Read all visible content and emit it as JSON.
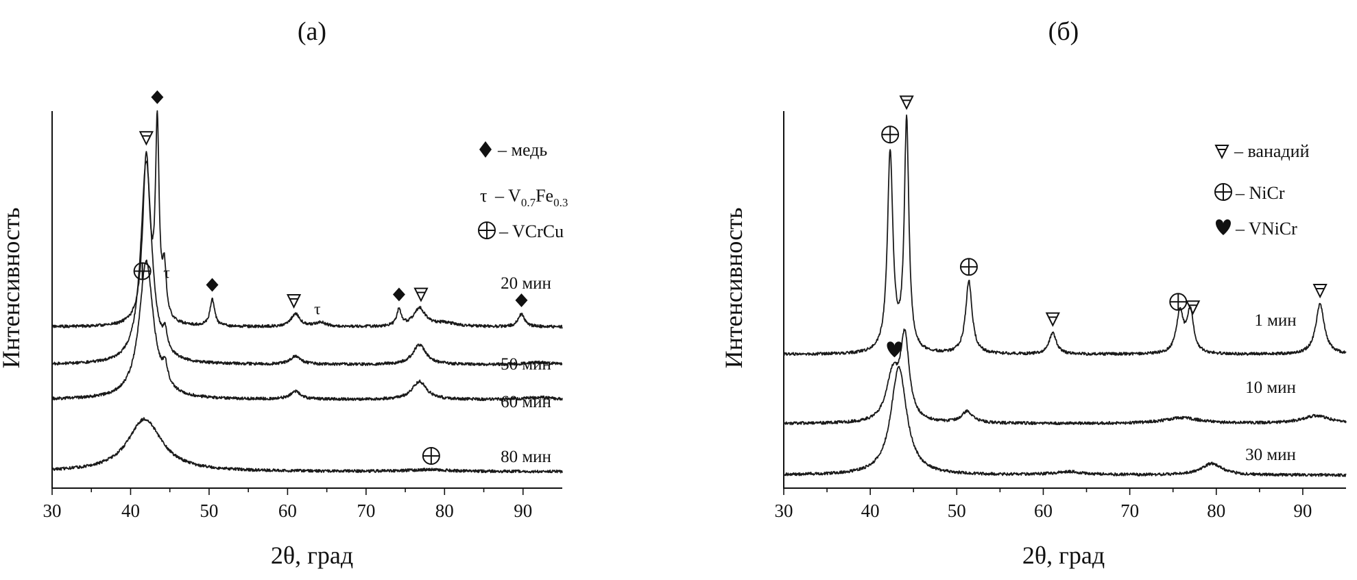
{
  "chart_data": [
    {
      "type": "line",
      "panel_label": "(а)",
      "xlabel": "2θ, град",
      "ylabel": "Интенсивность",
      "xlim": [
        30,
        95
      ],
      "xticks": [
        30,
        40,
        50,
        60,
        70,
        80,
        90
      ],
      "legend_position": "top-right",
      "legend": [
        {
          "symbol": "diamond",
          "text": "– медь"
        },
        {
          "symbol": "tau",
          "text": "– V",
          "sub1": "0.7",
          "mid": "Fe",
          "sub2": "0.3"
        },
        {
          "symbol": "circle-plus",
          "text": "– VCrCu"
        }
      ],
      "series": [
        {
          "name": "20 мин",
          "baseline": 0.42,
          "peaks": [
            [
              42.0,
              4.6,
              0.55
            ],
            [
              43.4,
              5.2,
              0.28
            ],
            [
              44.3,
              1.3,
              0.3
            ],
            [
              50.4,
              0.75,
              0.35
            ],
            [
              61.0,
              0.35,
              0.7
            ],
            [
              64.2,
              0.12,
              0.8
            ],
            [
              74.2,
              0.45,
              0.35
            ],
            [
              76.8,
              0.5,
              0.9
            ],
            [
              80.0,
              0.1,
              2.0
            ],
            [
              89.8,
              0.35,
              0.5
            ]
          ],
          "markers": [
            [
              42.0,
              "v"
            ],
            [
              43.4,
              "diamond"
            ],
            [
              44.6,
              "tau"
            ],
            [
              50.4,
              "diamond"
            ],
            [
              60.8,
              "v"
            ],
            [
              63.8,
              "tau"
            ],
            [
              74.2,
              "diamond"
            ],
            [
              77.0,
              "v"
            ],
            [
              89.8,
              "diamond"
            ]
          ]
        },
        {
          "name": "50 мин",
          "baseline": 0.31,
          "peaks": [
            [
              42.0,
              5.6,
              0.85
            ],
            [
              44.4,
              0.5,
              0.35
            ],
            [
              61.0,
              0.22,
              0.8
            ],
            [
              76.8,
              0.55,
              1.0
            ],
            [
              92.0,
              0.06,
              2.0
            ]
          ],
          "markers": []
        },
        {
          "name": "60 мин",
          "baseline": 0.2,
          "peaks": [
            [
              42.0,
              3.8,
              1.1
            ],
            [
              44.4,
              0.5,
              0.4
            ],
            [
              61.0,
              0.22,
              0.8
            ],
            [
              76.8,
              0.5,
              1.1
            ],
            [
              92.0,
              0.06,
              2.0
            ]
          ],
          "markers": [
            [
              41.5,
              "circle-plus"
            ]
          ]
        },
        {
          "name": "80 мин",
          "baseline": 0.06,
          "peaks": [
            [
              41.8,
              1.45,
              2.6
            ],
            [
              78.0,
              0.05,
              3.0
            ]
          ],
          "markers": [
            [
              78.3,
              "circle-plus"
            ]
          ]
        }
      ]
    },
    {
      "type": "line",
      "panel_label": "(б)",
      "xlabel": "2θ, град",
      "ylabel": "Интенсивность",
      "xlim": [
        30,
        95
      ],
      "xticks": [
        30,
        40,
        50,
        60,
        70,
        80,
        90
      ],
      "legend_position": "top-right",
      "legend": [
        {
          "symbol": "v",
          "text": "– ванадий"
        },
        {
          "symbol": "circle-plus",
          "text": "– NiCr"
        },
        {
          "symbol": "heart",
          "text": "– VNiCr"
        }
      ],
      "series": [
        {
          "name": "1 мин",
          "baseline": 0.36,
          "peaks": [
            [
              42.3,
              5.2,
              0.38
            ],
            [
              44.2,
              6.0,
              0.32
            ],
            [
              51.4,
              1.9,
              0.45
            ],
            [
              61.1,
              0.55,
              0.5
            ],
            [
              75.8,
              1.05,
              0.5
            ],
            [
              77.0,
              1.1,
              0.45
            ],
            [
              92.0,
              1.3,
              0.6
            ]
          ],
          "markers": [
            [
              42.3,
              "circle-plus"
            ],
            [
              44.2,
              "v"
            ],
            [
              51.4,
              "circle-plus"
            ],
            [
              61.1,
              "v"
            ],
            [
              75.6,
              "circle-plus"
            ],
            [
              77.3,
              "v"
            ],
            [
              92.0,
              "v"
            ]
          ]
        },
        {
          "name": "10 мин",
          "baseline": 0.14,
          "peaks": [
            [
              42.6,
              1.2,
              0.9
            ],
            [
              44.0,
              2.1,
              0.6
            ],
            [
              51.2,
              0.3,
              0.8
            ],
            [
              76.0,
              0.15,
              2.5
            ],
            [
              91.5,
              0.2,
              2.0
            ]
          ],
          "markers": [
            [
              42.8,
              "heart"
            ]
          ]
        },
        {
          "name": "30 мин",
          "baseline": 0.02,
          "peaks": [
            [
              43.3,
              2.8,
              1.1
            ],
            [
              63.0,
              0.08,
              2.0
            ],
            [
              79.5,
              0.3,
              1.4
            ]
          ],
          "markers": []
        }
      ]
    }
  ]
}
